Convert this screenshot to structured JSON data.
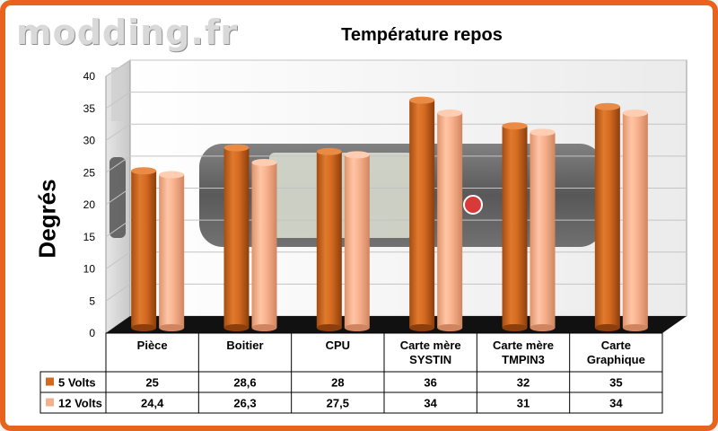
{
  "watermark": "modding.fr",
  "chart_data": {
    "type": "bar",
    "title": "Température repos",
    "ylabel": "Degrés",
    "xlabel": "",
    "ylim": [
      0,
      40
    ],
    "yticks": [
      "0",
      "5",
      "10",
      "15",
      "20",
      "25",
      "30",
      "35",
      "40"
    ],
    "categories": [
      [
        "Pièce"
      ],
      [
        "Boitier"
      ],
      [
        "CPU"
      ],
      [
        "Carte mère",
        "SYSTIN"
      ],
      [
        "Carte mère",
        "TMPIN3"
      ],
      [
        "Carte",
        "Graphique"
      ]
    ],
    "series": [
      {
        "name": "5 Volts",
        "color": "#d3691f",
        "values": [
          25,
          28.6,
          28,
          36,
          32,
          35
        ],
        "labels": [
          "25",
          "28,6",
          "28",
          "36",
          "32",
          "35"
        ]
      },
      {
        "name": "12 Volts",
        "color": "#f7b08c",
        "values": [
          24.4,
          26.3,
          27.5,
          34,
          31,
          34
        ],
        "labels": [
          "24,4",
          "26,3",
          "27,5",
          "34",
          "31",
          "34"
        ]
      }
    ],
    "grid": true,
    "legend": "data-table"
  }
}
